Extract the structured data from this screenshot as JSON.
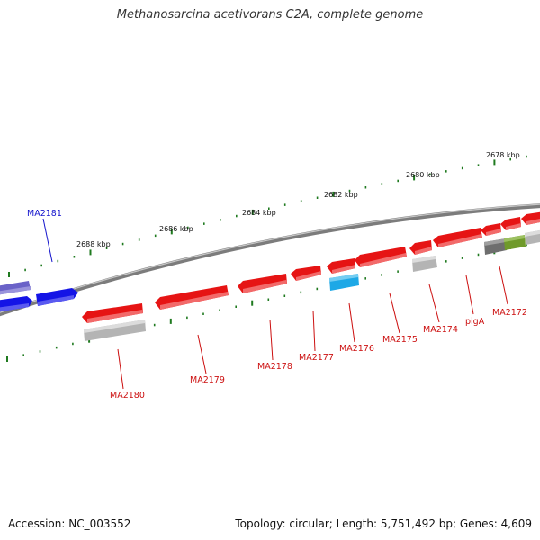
{
  "title": "Methanosarcina acetivorans C2A, complete genome",
  "footer": {
    "accession": "Accession: NC_003552",
    "stats": "Topology: circular; Length: 5,751,492 bp; Genes: 4,609"
  },
  "colors": {
    "backbone": "#8a8a8a",
    "tick_dark_green": "#1f7a1f",
    "forward_gene": "#1414e6",
    "forward_gene_faded": "#6a62c8",
    "reverse_gene": "#e61414",
    "cds_alt_cyan": "#1ea8e6",
    "pseudo_gray": "#b4b4b4",
    "dark_gray": "#6e6e6e",
    "olive": "#6f9a2a",
    "label_forward": "#1414cc",
    "label_reverse": "#cc1010"
  },
  "kbp_ticks": [
    "2678 kbp",
    "2680 kbp",
    "2682 kbp",
    "2684 kbp",
    "2686 kbp",
    "2688 kbp"
  ],
  "gene_labels": [
    "MA2181",
    "MA2180",
    "MA2179",
    "MA2178",
    "MA2177",
    "MA2176",
    "MA2175",
    "MA2174",
    "pigA",
    "MA2172"
  ]
}
